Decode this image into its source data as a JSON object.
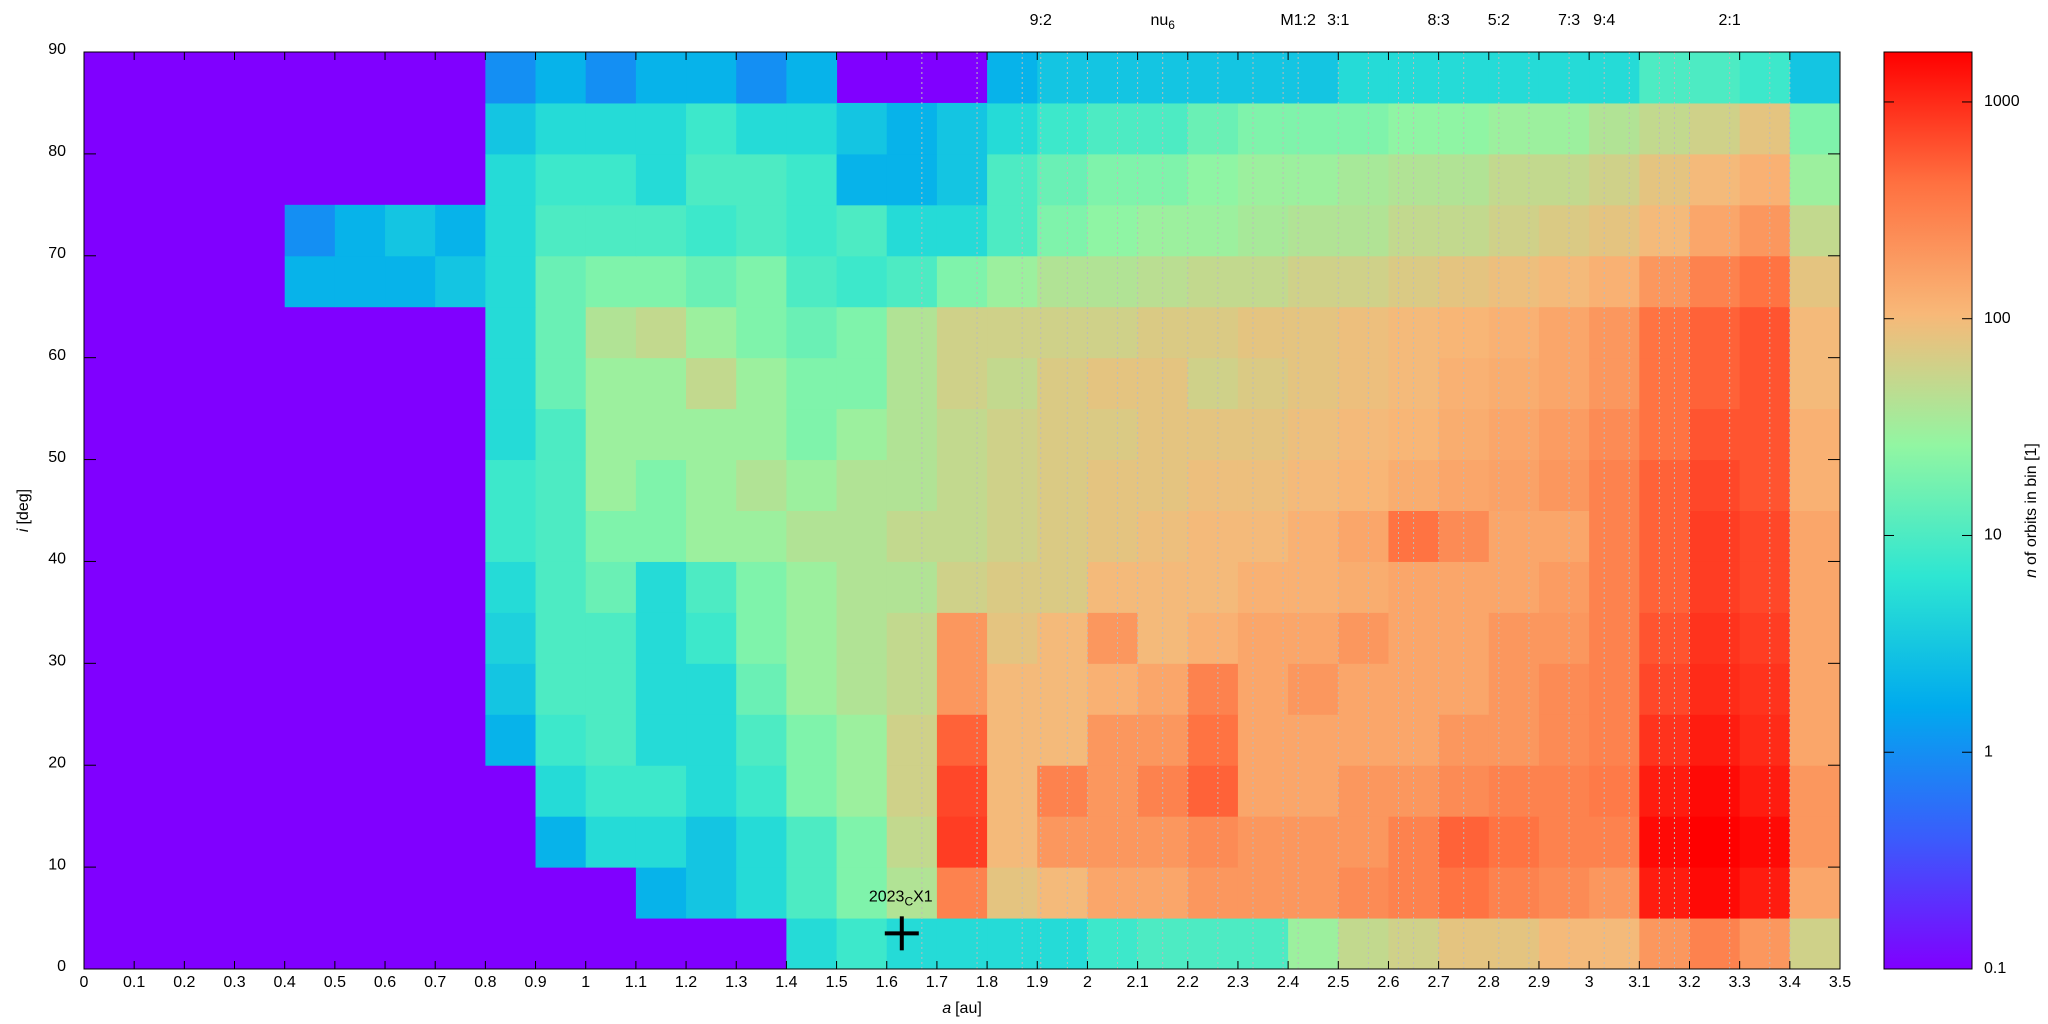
{
  "chart_data": {
    "type": "heatmap",
    "x_label": {
      "symbol": "a",
      "unit": "[au]"
    },
    "y_label": {
      "symbol": "i",
      "unit": "[deg]"
    },
    "colorbar_label": {
      "symbol": "n",
      "text": "of orbits in bin [1]"
    },
    "xlim": [
      0,
      3.5
    ],
    "ylim": [
      0,
      90
    ],
    "xticks": [
      0,
      0.1,
      0.2,
      0.3,
      0.4,
      0.5,
      0.6,
      0.7,
      0.8,
      0.9,
      1,
      1.1,
      1.2,
      1.3,
      1.4,
      1.5,
      1.6,
      1.7,
      1.8,
      1.9,
      2,
      2.1,
      2.2,
      2.3,
      2.4,
      2.5,
      2.6,
      2.7,
      2.8,
      2.9,
      3,
      3.1,
      3.2,
      3.3,
      3.4,
      3.5
    ],
    "yticks": [
      0,
      10,
      20,
      30,
      40,
      50,
      60,
      70,
      80,
      90
    ],
    "clim": [
      0.1,
      1700
    ],
    "cticks": [
      0.1,
      1,
      10,
      100,
      1000
    ],
    "log_color": true,
    "colormap": [
      "#8000ff",
      "#3a5cfc",
      "#00aaee",
      "#2ee6d2",
      "#92f6a2",
      "#f8b878",
      "#ff7040",
      "#ff0000"
    ],
    "xbins": [
      0,
      0.1,
      0.2,
      0.3,
      0.4,
      0.5,
      0.6,
      0.7,
      0.8,
      0.9,
      1,
      1.1,
      1.2,
      1.3,
      1.4,
      1.5,
      1.6,
      1.7,
      1.8,
      1.9,
      2,
      2.1,
      2.2,
      2.3,
      2.4,
      2.5,
      2.6,
      2.7,
      2.8,
      2.9,
      3,
      3.1,
      3.2,
      3.3,
      3.4,
      3.5
    ],
    "ybins": [
      0,
      5,
      10,
      15,
      20,
      25,
      30,
      35,
      40,
      45,
      50,
      55,
      60,
      65,
      70,
      75,
      80,
      85,
      90
    ],
    "z": [
      [
        null,
        null,
        null,
        null,
        null,
        null,
        null,
        null,
        null,
        null,
        null,
        null,
        null,
        null,
        5,
        8,
        5,
        5,
        5,
        5,
        8,
        10,
        10,
        10,
        30,
        50,
        60,
        80,
        80,
        100,
        100,
        200,
        300,
        200,
        60
      ],
      [
        null,
        null,
        null,
        null,
        null,
        null,
        null,
        null,
        null,
        null,
        null,
        2,
        3,
        5,
        10,
        20,
        40,
        300,
        80,
        100,
        150,
        150,
        200,
        200,
        200,
        250,
        300,
        400,
        300,
        250,
        200,
        1200,
        1500,
        1200,
        150
      ],
      [
        null,
        null,
        null,
        null,
        null,
        null,
        null,
        null,
        null,
        2,
        5,
        5,
        3,
        5,
        10,
        20,
        50,
        800,
        100,
        200,
        200,
        200,
        250,
        200,
        200,
        200,
        300,
        500,
        400,
        300,
        300,
        1500,
        1800,
        1500,
        200
      ],
      [
        null,
        null,
        null,
        null,
        null,
        null,
        null,
        null,
        null,
        5,
        8,
        8,
        5,
        8,
        20,
        30,
        60,
        700,
        100,
        300,
        200,
        300,
        500,
        150,
        150,
        200,
        200,
        250,
        300,
        300,
        350,
        1200,
        1500,
        1200,
        200
      ],
      [
        null,
        null,
        null,
        null,
        null,
        null,
        null,
        null,
        2,
        8,
        10,
        5,
        5,
        10,
        20,
        30,
        60,
        500,
        100,
        100,
        200,
        200,
        400,
        150,
        150,
        150,
        150,
        200,
        200,
        250,
        300,
        900,
        1200,
        1000,
        150
      ],
      [
        null,
        null,
        null,
        null,
        null,
        null,
        null,
        null,
        3,
        10,
        10,
        5,
        5,
        15,
        30,
        40,
        50,
        200,
        100,
        100,
        120,
        150,
        300,
        150,
        200,
        150,
        150,
        150,
        200,
        250,
        300,
        700,
        1000,
        900,
        150
      ],
      [
        null,
        null,
        null,
        null,
        null,
        null,
        null,
        null,
        4,
        10,
        10,
        5,
        8,
        20,
        30,
        40,
        50,
        200,
        80,
        100,
        200,
        100,
        120,
        150,
        150,
        200,
        150,
        150,
        200,
        200,
        300,
        600,
        900,
        800,
        150
      ],
      [
        null,
        null,
        null,
        null,
        null,
        null,
        null,
        null,
        5,
        10,
        15,
        5,
        10,
        20,
        30,
        40,
        40,
        60,
        70,
        70,
        100,
        100,
        100,
        120,
        120,
        130,
        150,
        150,
        150,
        180,
        300,
        500,
        800,
        700,
        150
      ],
      [
        null,
        null,
        null,
        null,
        null,
        null,
        null,
        null,
        8,
        10,
        20,
        20,
        30,
        30,
        40,
        40,
        50,
        50,
        60,
        70,
        80,
        90,
        100,
        100,
        120,
        150,
        400,
        250,
        150,
        150,
        300,
        500,
        800,
        700,
        150
      ],
      [
        null,
        null,
        null,
        null,
        null,
        null,
        null,
        null,
        8,
        10,
        30,
        20,
        30,
        40,
        30,
        40,
        40,
        50,
        60,
        70,
        80,
        80,
        90,
        90,
        100,
        110,
        130,
        150,
        160,
        200,
        300,
        500,
        700,
        600,
        120
      ],
      [
        null,
        null,
        null,
        null,
        null,
        null,
        null,
        null,
        5,
        10,
        30,
        30,
        30,
        30,
        20,
        30,
        40,
        50,
        60,
        70,
        70,
        80,
        80,
        80,
        90,
        100,
        110,
        130,
        150,
        180,
        250,
        400,
        600,
        600,
        120
      ],
      [
        null,
        null,
        null,
        null,
        null,
        null,
        null,
        null,
        5,
        15,
        30,
        30,
        50,
        30,
        20,
        20,
        40,
        60,
        50,
        70,
        80,
        80,
        60,
        70,
        80,
        90,
        100,
        120,
        130,
        150,
        200,
        400,
        500,
        600,
        100
      ],
      [
        null,
        null,
        null,
        null,
        null,
        null,
        null,
        null,
        5,
        15,
        40,
        50,
        30,
        20,
        15,
        20,
        40,
        60,
        60,
        60,
        60,
        70,
        70,
        80,
        80,
        90,
        100,
        110,
        120,
        150,
        200,
        400,
        500,
        600,
        100
      ],
      [
        null,
        null,
        null,
        null,
        2,
        2,
        2,
        3,
        5,
        15,
        20,
        20,
        15,
        20,
        10,
        8,
        10,
        20,
        30,
        40,
        40,
        45,
        50,
        50,
        60,
        60,
        70,
        80,
        90,
        100,
        120,
        200,
        300,
        400,
        80
      ],
      [
        null,
        null,
        null,
        null,
        1,
        2,
        3,
        2,
        5,
        10,
        10,
        10,
        8,
        10,
        8,
        10,
        5,
        5,
        10,
        20,
        25,
        30,
        30,
        35,
        40,
        40,
        50,
        50,
        60,
        70,
        80,
        100,
        150,
        200,
        50
      ],
      [
        null,
        null,
        null,
        null,
        null,
        null,
        null,
        null,
        5,
        8,
        8,
        5,
        10,
        10,
        8,
        2,
        2,
        3,
        10,
        15,
        20,
        20,
        25,
        30,
        30,
        35,
        40,
        40,
        50,
        50,
        60,
        80,
        100,
        120,
        30
      ],
      [
        null,
        null,
        null,
        null,
        null,
        null,
        null,
        null,
        3,
        5,
        5,
        5,
        8,
        5,
        5,
        3,
        2,
        3,
        5,
        8,
        10,
        10,
        15,
        20,
        20,
        20,
        25,
        25,
        30,
        30,
        40,
        50,
        60,
        80,
        20
      ],
      [
        null,
        null,
        null,
        null,
        null,
        null,
        null,
        null,
        1,
        2,
        1,
        2,
        2,
        1,
        2,
        null,
        null,
        null,
        2,
        3,
        3,
        3,
        3,
        3,
        3,
        5,
        5,
        5,
        5,
        5,
        5,
        10,
        10,
        8,
        3
      ]
    ],
    "resonances": [
      {
        "a": 1.907,
        "label": "9:2"
      },
      {
        "a": 2.15,
        "label": "nu",
        "sub": "6"
      },
      {
        "a": 2.42,
        "label": "M1:2"
      },
      {
        "a": 2.5,
        "label": "3:1"
      },
      {
        "a": 2.7,
        "label": "8:3"
      },
      {
        "a": 2.82,
        "label": "5:2"
      },
      {
        "a": 2.96,
        "label": "7:3"
      },
      {
        "a": 3.03,
        "label": "9:4"
      },
      {
        "a": 3.28,
        "label": "2:1"
      }
    ],
    "other_resonance_lines": [
      1.67,
      1.78,
      1.87,
      1.96,
      2.0,
      2.06,
      2.1,
      2.2,
      2.26,
      2.33,
      2.39,
      2.56,
      2.62,
      2.65,
      2.75,
      2.88,
      3.08,
      3.14,
      3.17,
      3.2,
      3.36,
      3.4
    ],
    "marker": {
      "x": 1.63,
      "y": 3.5,
      "text_before": "2023",
      "sub": "C",
      "text_after": "X1"
    }
  }
}
